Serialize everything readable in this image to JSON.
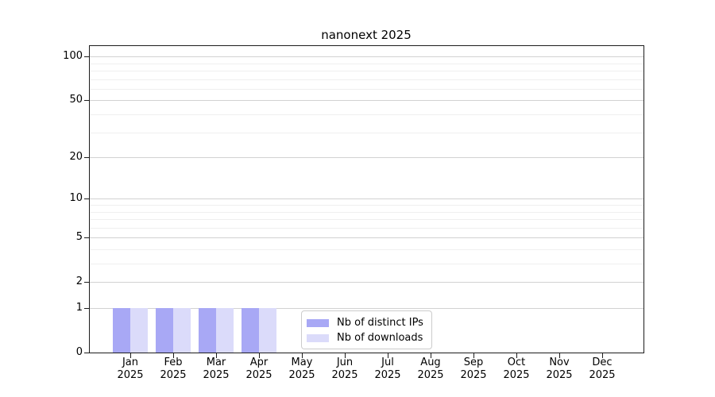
{
  "chart_data": {
    "type": "bar",
    "title": "nanonext 2025",
    "categories": [
      {
        "month": "Jan",
        "year": "2025"
      },
      {
        "month": "Feb",
        "year": "2025"
      },
      {
        "month": "Mar",
        "year": "2025"
      },
      {
        "month": "Apr",
        "year": "2025"
      },
      {
        "month": "May",
        "year": "2025"
      },
      {
        "month": "Jun",
        "year": "2025"
      },
      {
        "month": "Jul",
        "year": "2025"
      },
      {
        "month": "Aug",
        "year": "2025"
      },
      {
        "month": "Sep",
        "year": "2025"
      },
      {
        "month": "Oct",
        "year": "2025"
      },
      {
        "month": "Nov",
        "year": "2025"
      },
      {
        "month": "Dec",
        "year": "2025"
      }
    ],
    "series": [
      {
        "name": "Nb of distinct IPs",
        "color": "#a8a8f5",
        "values": [
          1,
          1,
          1,
          1,
          0,
          0,
          0,
          0,
          0,
          0,
          0,
          0
        ]
      },
      {
        "name": "Nb of downloads",
        "color": "#dbdbfa",
        "values": [
          1,
          1,
          1,
          1,
          0,
          0,
          0,
          0,
          0,
          0,
          0,
          0
        ]
      }
    ],
    "xlabel": "",
    "ylabel": "",
    "yscale": "log1p",
    "y_ticks": [
      0,
      1,
      2,
      5,
      10,
      20,
      50,
      100
    ],
    "y_minor_ticks": [
      3,
      4,
      6,
      7,
      8,
      9,
      30,
      40,
      60,
      70,
      80,
      90
    ],
    "ylim": [
      0,
      118
    ],
    "grid": true,
    "legend_position": "lower center"
  },
  "colors": {
    "major_grid": "#d2d2d2",
    "minor_grid": "#efefef",
    "spine": "#1c1c1c",
    "background": "#ffffff",
    "text": "#000000"
  }
}
